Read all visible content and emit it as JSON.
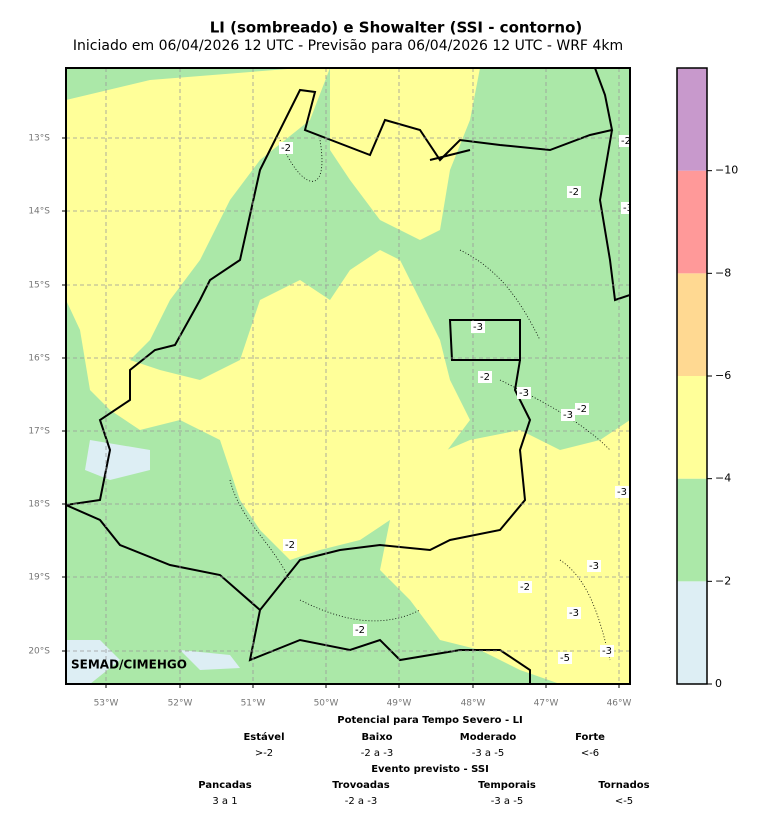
{
  "header": {
    "title": "LI (sombreado) e Showalter (SSI - contorno)",
    "subtitle": "Iniciado em 06/04/2026 12 UTC - Previsão para 06/04/2026 12 UTC - WRF 4km"
  },
  "map": {
    "lat_labels": [
      "13°S",
      "14°S",
      "15°S",
      "16°S",
      "17°S",
      "18°S",
      "19°S",
      "20°S"
    ],
    "lon_labels": [
      "53°W",
      "52°W",
      "51°W",
      "50°W",
      "49°W",
      "48°W",
      "47°W",
      "46°W"
    ],
    "credit": "SEMAD/CIMEHGO",
    "contour_labels": [
      -2,
      -2,
      -2,
      -3,
      -3,
      -2,
      -3,
      -2,
      -3,
      -3,
      -2,
      -3,
      -2,
      -3,
      -2,
      -3,
      -5
    ]
  },
  "colorbar": {
    "lim": [
      0,
      -12
    ],
    "ticks": [
      0,
      {
        "value": -2,
        "label": "−2"
      },
      {
        "value": -4,
        "label": "−4"
      },
      {
        "value": -6,
        "label": "−6"
      },
      {
        "value": -8,
        "label": "−8"
      },
      {
        "value": -10,
        "label": "−10"
      }
    ],
    "colors": [
      "#ddeef4",
      "#abe8a8",
      "#ffff99",
      "#ffd992",
      "#ff9999",
      "#c899cc"
    ]
  },
  "legend": {
    "li_title": "Potencial para Tempo Severo - LI",
    "li_classes": [
      {
        "name": "Estável",
        "range": ">-2"
      },
      {
        "name": "Baixo",
        "range": "-2 a -3"
      },
      {
        "name": "Moderado",
        "range": "-3 a -5"
      },
      {
        "name": "Forte",
        "range": "<-6"
      }
    ],
    "ssi_title": "Evento previsto - SSI",
    "ssi_classes": [
      {
        "name": "Pancadas",
        "range": "3 a 1"
      },
      {
        "name": "Trovoadas",
        "range": "-2 a -3"
      },
      {
        "name": "Temporais",
        "range": "-3 a -5"
      },
      {
        "name": "Tornados",
        "range": "<-5"
      }
    ]
  }
}
